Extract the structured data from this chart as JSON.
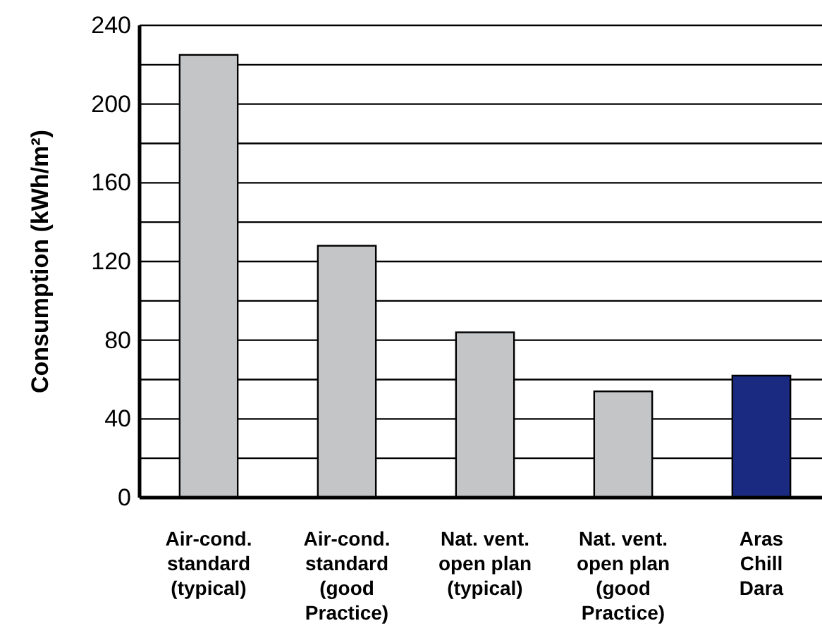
{
  "chart_data": {
    "type": "bar",
    "ylabel": "Consumption (kWh/m²)",
    "categories": [
      "Air-cond.\nstandard\n(typical)",
      "Air-cond.\nstandard\n(good\nPractice)",
      "Nat. vent.\nopen plan\n(typical)",
      "Nat. vent.\nopen plan\n(good\nPractice)",
      "Aras\nChill\nDara"
    ],
    "values": [
      225,
      128,
      84,
      54,
      62
    ],
    "colors": [
      "#c4c5c7",
      "#c4c5c7",
      "#c4c5c7",
      "#c4c5c7",
      "#1a2a80"
    ],
    "ylim": [
      0,
      240
    ],
    "yticks": [
      0,
      {
        "value": 20,
        "label": null
      },
      40,
      {
        "value": 60,
        "label": null
      },
      80,
      {
        "value": 100,
        "label": null
      },
      120,
      {
        "value": 140,
        "label": null
      },
      160,
      {
        "value": 180,
        "label": null
      },
      200,
      {
        "value": 220,
        "label": null
      },
      240
    ],
    "grid": "y"
  }
}
